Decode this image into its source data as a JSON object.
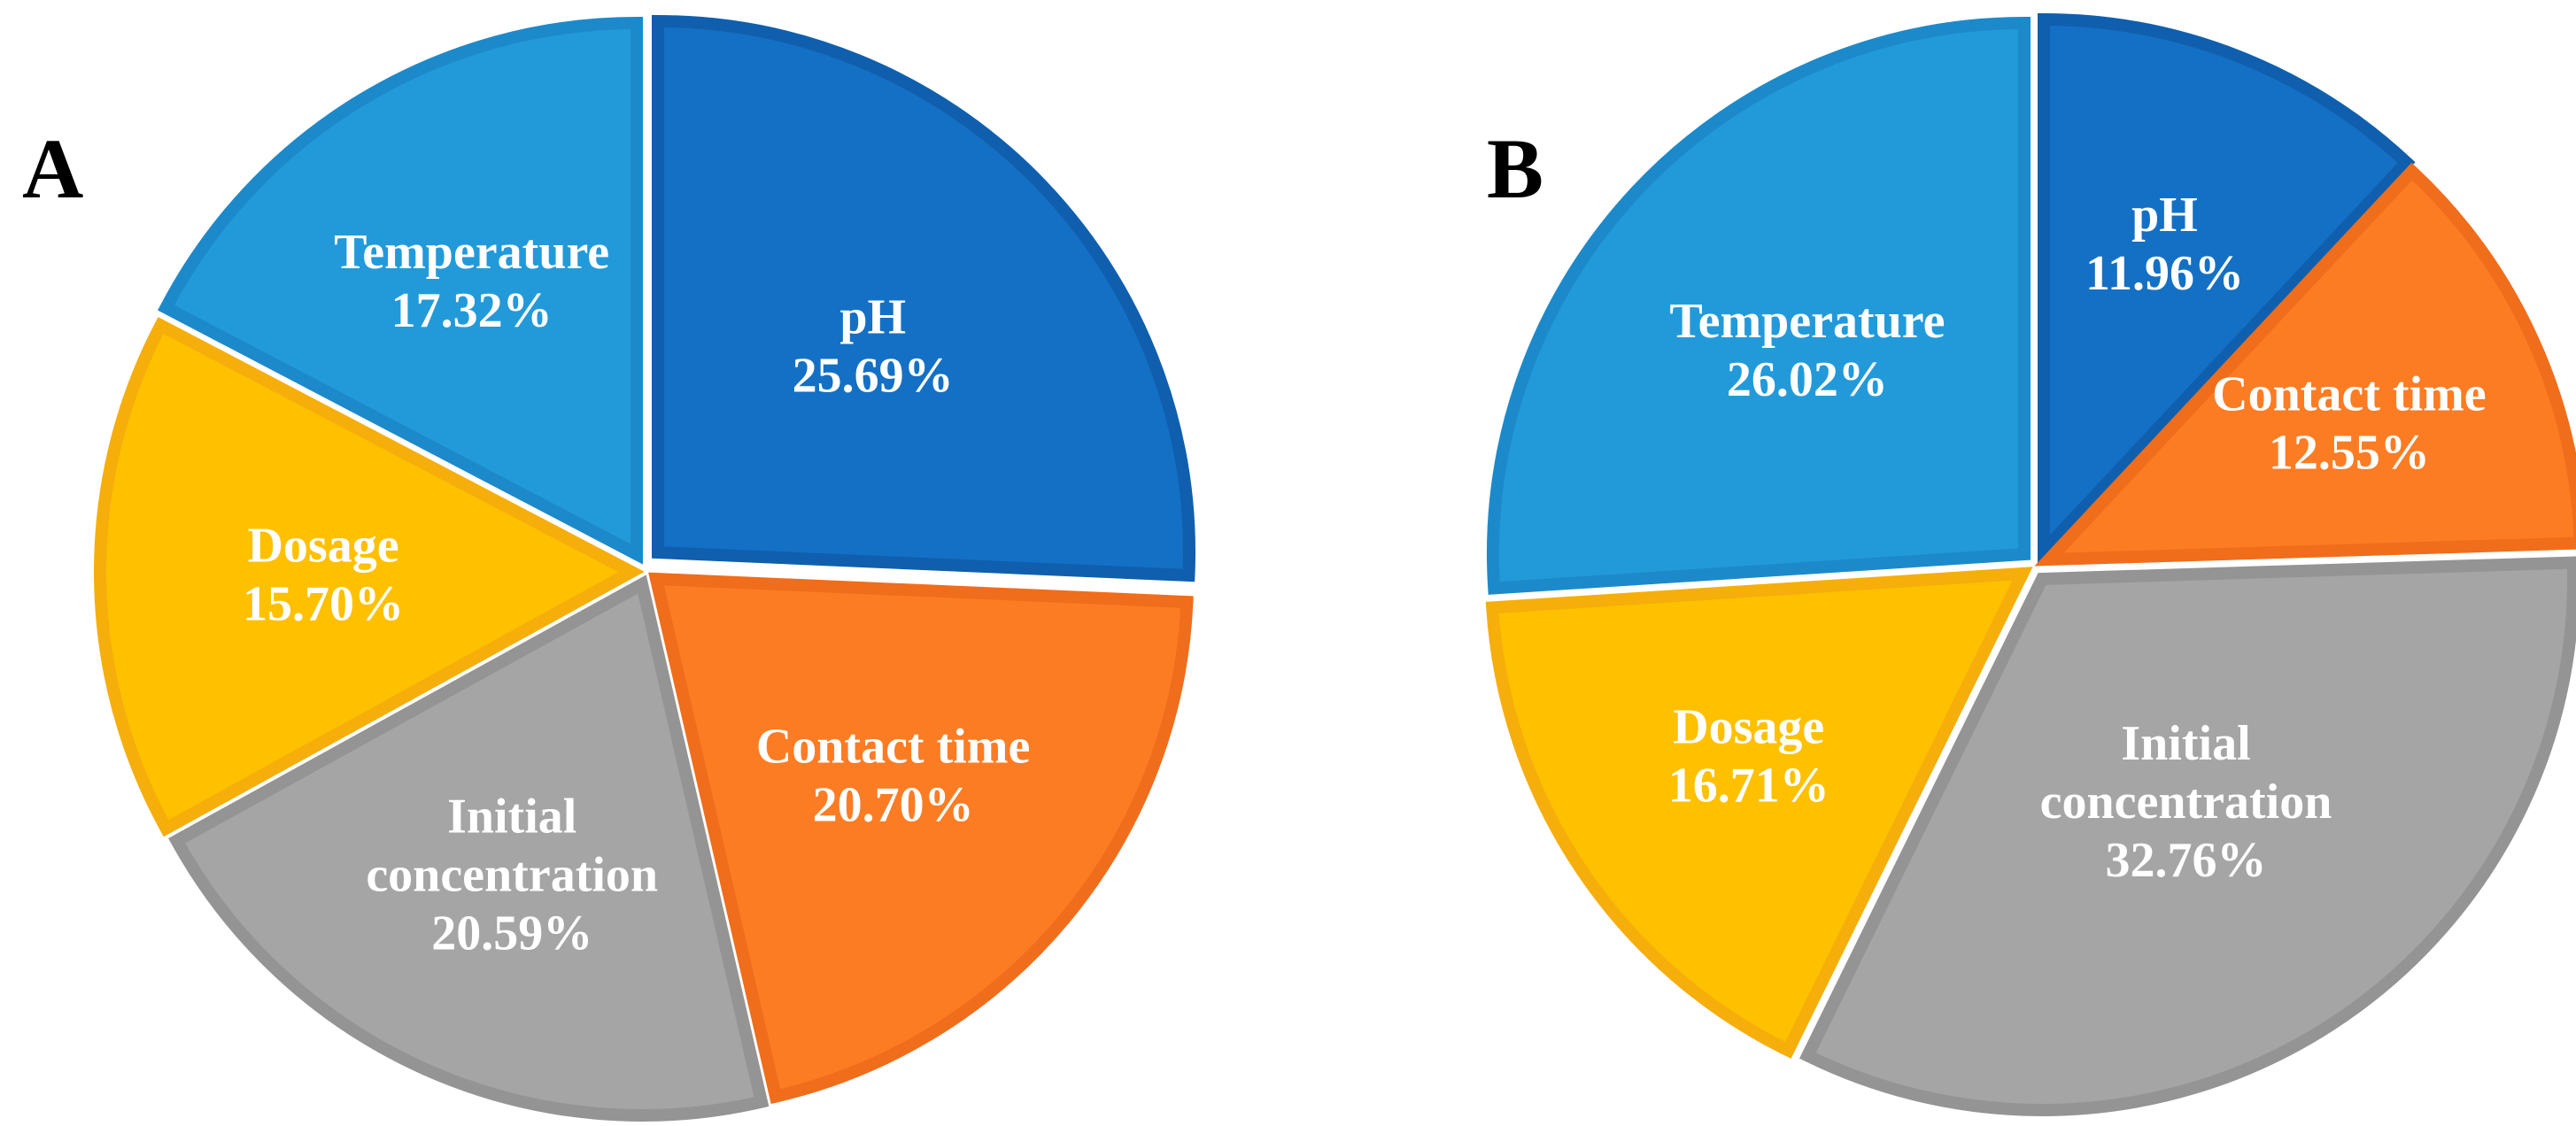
{
  "chart_data": [
    {
      "type": "pie",
      "panel_label": "A",
      "slices": [
        {
          "label_lines": [
            "pH"
          ],
          "value": 25.69,
          "value_text": "25.69%",
          "color": "#1470C4",
          "stroke": "#0F5FAE"
        },
        {
          "label_lines": [
            "Contact time"
          ],
          "value": 20.7,
          "value_text": "20.70%",
          "color": "#FC7C24",
          "stroke": "#F06D1B"
        },
        {
          "label_lines": [
            "Initial",
            "concentration"
          ],
          "value": 20.59,
          "value_text": "20.59%",
          "color": "#A5A5A5",
          "stroke": "#949494"
        },
        {
          "label_lines": [
            "Dosage"
          ],
          "value": 15.7,
          "value_text": "15.70%",
          "color": "#FFC000",
          "stroke": "#F6AE0A"
        },
        {
          "label_lines": [
            "Temperature"
          ],
          "value": 17.32,
          "value_text": "17.32%",
          "color": "#229ADA",
          "stroke": "#1C8ACA"
        }
      ]
    },
    {
      "type": "pie",
      "panel_label": "B",
      "slices": [
        {
          "label_lines": [
            "pH"
          ],
          "value": 11.96,
          "value_text": "11.96%",
          "color": "#1470C4",
          "stroke": "#0F5FAE"
        },
        {
          "label_lines": [
            "Contact time"
          ],
          "value": 12.55,
          "value_text": "12.55%",
          "color": "#FC7C24",
          "stroke": "#F06D1B"
        },
        {
          "label_lines": [
            "Initial",
            "concentration"
          ],
          "value": 32.76,
          "value_text": "32.76%",
          "color": "#A5A5A5",
          "stroke": "#949494"
        },
        {
          "label_lines": [
            "Dosage"
          ],
          "value": 16.71,
          "value_text": "16.71%",
          "color": "#FFC000",
          "stroke": "#F6AE0A"
        },
        {
          "label_lines": [
            "Temperature"
          ],
          "value": 26.02,
          "value_text": "26.02%",
          "color": "#229ADA",
          "stroke": "#1C8ACA"
        }
      ]
    }
  ]
}
